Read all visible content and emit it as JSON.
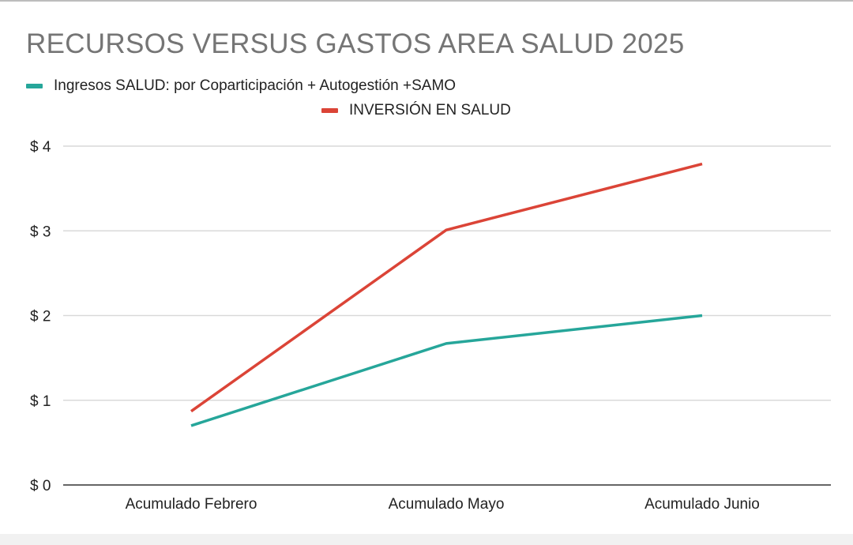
{
  "chart_data": {
    "type": "line",
    "title": "RECURSOS VERSUS GASTOS AREA SALUD 2025",
    "categories": [
      "Acumulado Febrero",
      "Acumulado Mayo",
      "Acumulado Junio"
    ],
    "series": [
      {
        "name": "Ingresos SALUD: por Coparticipación + Autogestión  +SAMO",
        "color": "#26a69a",
        "values": [
          0.7,
          1.67,
          2.0
        ]
      },
      {
        "name": "INVERSIÓN EN SALUD",
        "color": "#db4437",
        "values": [
          0.87,
          3.01,
          3.79
        ]
      }
    ],
    "yticks": [
      "$ 0",
      "$ 1",
      "$ 2",
      "$ 3",
      "$ 4"
    ],
    "ylim": [
      0,
      4
    ],
    "xlabel": "",
    "ylabel": "",
    "grid": true,
    "legend": "top-left"
  }
}
